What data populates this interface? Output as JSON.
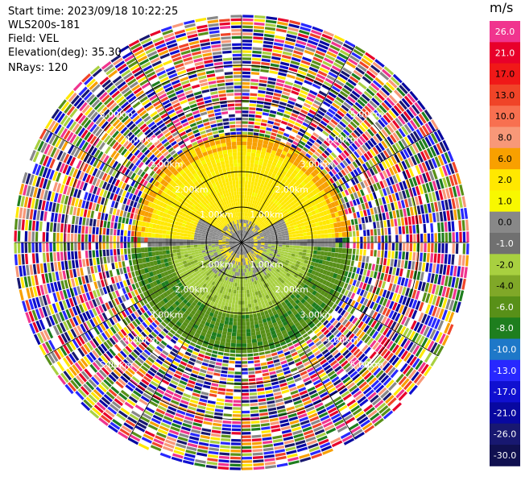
{
  "header": {
    "start_time": "Start time: 2023/09/18 10:22:25",
    "instrument": "WLS200s-181",
    "field": "Field: VEL",
    "elevation": "Elevation(deg): 35.30",
    "nrays": "NRays: 120"
  },
  "colorbar": {
    "unit": "m/s",
    "ticks": [
      "26.0",
      "21.0",
      "17.0",
      "13.0",
      "10.0",
      "8.0",
      "6.0",
      "2.0",
      "1.0",
      "0.0",
      "-1.0",
      "-2.0",
      "-4.0",
      "-6.0",
      "-8.0",
      "-10.0",
      "-13.0",
      "-17.0",
      "-21.0",
      "-26.0",
      "-30.0"
    ],
    "colors": [
      "#f0348e",
      "#e8002a",
      "#f01818",
      "#f04428",
      "#f87050",
      "#f89878",
      "#f8a000",
      "#ffe800",
      "#f8f800",
      "#888888",
      "#707070",
      "#a8d040",
      "#80a828",
      "#589018",
      "#1e7e1e",
      "#1e78c8",
      "#2828ff",
      "#1010d0",
      "#0808a0",
      "#181870",
      "#101050"
    ],
    "text_light": [
      "#ffffff",
      "#ffffff",
      "#000000",
      "#000000",
      "#000000",
      "#000000",
      "#000000",
      "#000000",
      "#000000",
      "#000000",
      "#ffffff",
      "#000000",
      "#000000",
      "#ffffff",
      "#ffffff",
      "#ffffff",
      "#ffffff",
      "#ffffff",
      "#ffffff",
      "#ffffff",
      "#ffffff"
    ]
  },
  "ring_labels": [
    "1.00km",
    "2.00km",
    "3.00km",
    "4.00km",
    "5.00km"
  ],
  "chart_data": {
    "type": "heatmap",
    "description_field": "VEL",
    "unit": "m/s",
    "range_rings_km": [
      1,
      2,
      3,
      4,
      5
    ],
    "nrays": 120,
    "elevation_deg": 35.3,
    "colorbar_ticks": [
      26.0,
      21.0,
      17.0,
      13.0,
      10.0,
      8.0,
      6.0,
      2.0,
      1.0,
      0.0,
      -1.0,
      -2.0,
      -4.0,
      -6.0,
      -8.0,
      -10.0,
      -13.0,
      -17.0,
      -21.0,
      -26.0,
      -30.0
    ],
    "max_range_km": 6.4
  }
}
